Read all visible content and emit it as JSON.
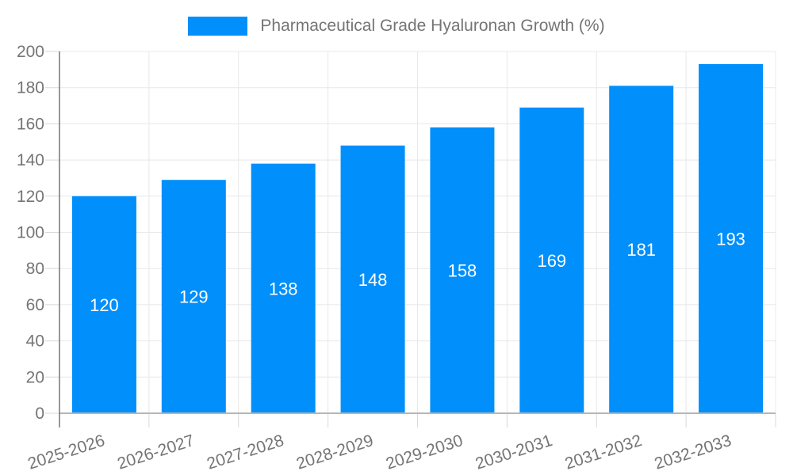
{
  "legend": {
    "label": "Pharmaceutical Grade Hyaluronan Growth (%)"
  },
  "chart_data": {
    "type": "bar",
    "title": "Pharmaceutical Grade Hyaluronan Growth (%)",
    "categories": [
      "2025-2026",
      "2026-2027",
      "2027-2028",
      "2028-2029",
      "2029-2030",
      "2030-2031",
      "2031-2032",
      "2032-2033"
    ],
    "values": [
      120,
      129,
      138,
      148,
      158,
      169,
      181,
      193
    ],
    "xlabel": "",
    "ylabel": "",
    "ylim": [
      0,
      200
    ],
    "ytick_step": 20,
    "grid": true,
    "legend_position": "top",
    "bar_label_color": "#FFFFFF",
    "x_label_rotation_deg": -18
  },
  "colors": {
    "bar": "#008FFB",
    "grid": "#E8E8E8",
    "tick": "#D8D8D8",
    "y_axis_line": "#777777",
    "x_axis_line": "#B6B6B6",
    "axis_text": "#757575",
    "legend_text": "#757575",
    "background": "#FFFFFF"
  }
}
